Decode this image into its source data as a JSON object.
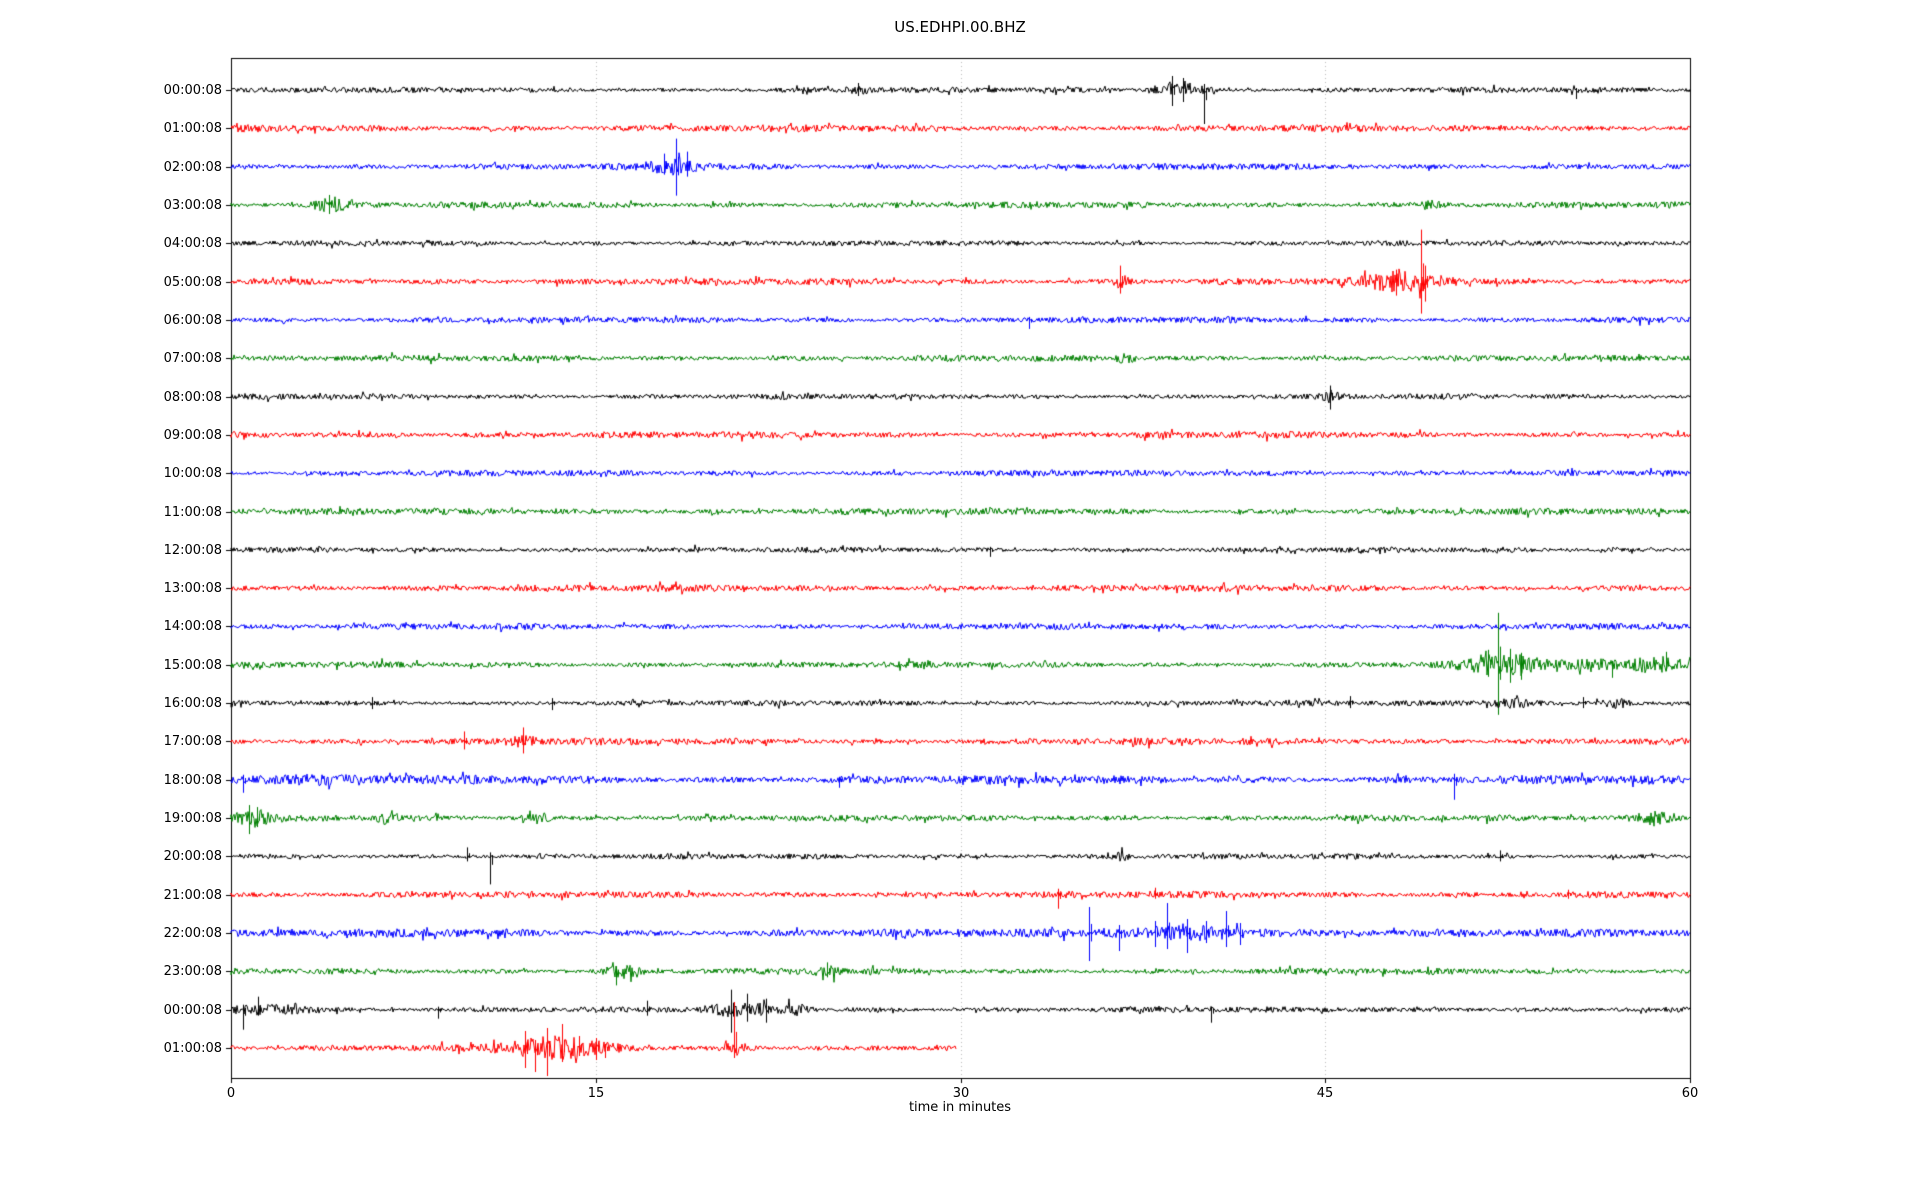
{
  "chart_data": {
    "type": "line",
    "subtype": "helicorder-dayplot",
    "title": "US.EDHPI.00.BHZ",
    "xlabel": "time in minutes",
    "x_range": [
      0,
      60
    ],
    "x_ticks": [
      0,
      15,
      30,
      45,
      60
    ],
    "grid": {
      "vertical_minutes": [
        15,
        30,
        45
      ],
      "horizontal": false,
      "style": "dotted-gray"
    },
    "trace_colors_cycle": [
      "#000000",
      "#ff0000",
      "#0000ff",
      "#008000"
    ],
    "rows": [
      {
        "label": "00:00:08",
        "color": "#000000",
        "end_minute": 60,
        "noise_amp": 2.7,
        "seed": 11,
        "events": [
          {
            "t": 25.8,
            "dur": 0.5,
            "amp": 4
          },
          {
            "t": 38.9,
            "dur": 1.3,
            "amp": 8
          }
        ],
        "spikes": [
          {
            "t": 25.8,
            "up": 7,
            "down": 6
          },
          {
            "t": 38.7,
            "up": 14,
            "down": 16
          },
          {
            "t": 39.15,
            "up": 12,
            "down": 12
          },
          {
            "t": 40.0,
            "up": 6,
            "down": 34
          },
          {
            "t": 55.3,
            "up": 2,
            "down": 9
          }
        ]
      },
      {
        "label": "01:00:08",
        "color": "#ff0000",
        "end_minute": 60,
        "noise_amp": 3.4,
        "seed": 22,
        "events": [],
        "spikes": []
      },
      {
        "label": "02:00:08",
        "color": "#0000ff",
        "end_minute": 60,
        "noise_amp": 3.1,
        "seed": 33,
        "events": [
          {
            "t": 18.3,
            "dur": 1.6,
            "amp": 6
          }
        ],
        "spikes": [
          {
            "t": 17.8,
            "up": 13,
            "down": 8
          },
          {
            "t": 18.3,
            "up": 28,
            "down": 29
          },
          {
            "t": 18.75,
            "up": 15,
            "down": 10
          }
        ]
      },
      {
        "label": "03:00:08",
        "color": "#008000",
        "end_minute": 60,
        "noise_amp": 3.0,
        "seed": 44,
        "events": [
          {
            "t": 4.1,
            "dur": 0.9,
            "amp": 6
          },
          {
            "t": 49.3,
            "dur": 0.8,
            "amp": 3
          }
        ],
        "spikes": [
          {
            "t": 4.05,
            "up": 10,
            "down": 9
          }
        ]
      },
      {
        "label": "04:00:08",
        "color": "#000000",
        "end_minute": 60,
        "noise_amp": 2.6,
        "seed": 55,
        "events": [],
        "spikes": []
      },
      {
        "label": "05:00:08",
        "color": "#ff0000",
        "end_minute": 60,
        "noise_amp": 3.3,
        "seed": 66,
        "events": [
          {
            "t": 36.6,
            "dur": 0.5,
            "amp": 5
          },
          {
            "t": 48.3,
            "dur": 2.4,
            "amp": 8
          }
        ],
        "spikes": [
          {
            "t": 36.55,
            "up": 16,
            "down": 12
          },
          {
            "t": 47.9,
            "up": 12,
            "down": 14
          },
          {
            "t": 48.95,
            "up": 52,
            "down": 32
          },
          {
            "t": 49.1,
            "up": 16,
            "down": 20
          }
        ]
      },
      {
        "label": "06:00:08",
        "color": "#0000ff",
        "end_minute": 60,
        "noise_amp": 3.0,
        "seed": 77,
        "events": [],
        "spikes": [
          {
            "t": 32.8,
            "up": 3,
            "down": 9
          }
        ]
      },
      {
        "label": "07:00:08",
        "color": "#008000",
        "end_minute": 60,
        "noise_amp": 3.0,
        "seed": 88,
        "events": [
          {
            "t": 36.8,
            "dur": 0.5,
            "amp": 4
          }
        ],
        "spikes": []
      },
      {
        "label": "08:00:08",
        "color": "#000000",
        "end_minute": 60,
        "noise_amp": 2.7,
        "seed": 99,
        "events": [
          {
            "t": 45.2,
            "dur": 0.5,
            "amp": 4
          }
        ],
        "spikes": [
          {
            "t": 45.2,
            "up": 11,
            "down": 13
          }
        ]
      },
      {
        "label": "09:00:08",
        "color": "#ff0000",
        "end_minute": 60,
        "noise_amp": 3.3,
        "seed": 110,
        "events": [],
        "spikes": []
      },
      {
        "label": "10:00:08",
        "color": "#0000ff",
        "end_minute": 60,
        "noise_amp": 3.0,
        "seed": 121,
        "events": [],
        "spikes": []
      },
      {
        "label": "11:00:08",
        "color": "#008000",
        "end_minute": 60,
        "noise_amp": 3.2,
        "seed": 132,
        "events": [],
        "spikes": []
      },
      {
        "label": "12:00:08",
        "color": "#000000",
        "end_minute": 60,
        "noise_amp": 2.7,
        "seed": 143,
        "events": [],
        "spikes": [
          {
            "t": 31.2,
            "up": 3,
            "down": 7
          }
        ]
      },
      {
        "label": "13:00:08",
        "color": "#ff0000",
        "end_minute": 60,
        "noise_amp": 3.3,
        "seed": 154,
        "events": [],
        "spikes": []
      },
      {
        "label": "14:00:08",
        "color": "#0000ff",
        "end_minute": 60,
        "noise_amp": 3.0,
        "seed": 165,
        "events": [],
        "spikes": []
      },
      {
        "label": "15:00:08",
        "color": "#008000",
        "end_minute": 60,
        "noise_amp": 3.0,
        "seed": 176,
        "events": [
          {
            "t": 52.4,
            "dur": 2.2,
            "amp": 10
          },
          {
            "t": 55.9,
            "dur": 1.4,
            "amp": 4
          },
          {
            "t": 58.6,
            "dur": 1.8,
            "amp": 7
          }
        ],
        "spikes": [
          {
            "t": 51.7,
            "up": 15,
            "down": 12
          },
          {
            "t": 52.1,
            "up": 52,
            "down": 50
          },
          {
            "t": 52.6,
            "up": 16,
            "down": 18
          },
          {
            "t": 53.05,
            "up": 12,
            "down": 15
          },
          {
            "t": 56.8,
            "up": 4,
            "down": 13
          },
          {
            "t": 59.0,
            "up": 13,
            "down": 6
          }
        ]
      },
      {
        "label": "16:00:08",
        "color": "#000000",
        "end_minute": 60,
        "noise_amp": 2.7,
        "seed": 187,
        "events": [
          {
            "t": 52.5,
            "dur": 1.5,
            "amp": 4
          },
          {
            "t": 57.0,
            "dur": 0.9,
            "amp": 4
          }
        ],
        "spikes": [
          {
            "t": 5.8,
            "up": 6,
            "down": 6
          },
          {
            "t": 13.2,
            "up": 5,
            "down": 7
          },
          {
            "t": 46.0,
            "up": 7,
            "down": 5
          },
          {
            "t": 55.6,
            "up": 6,
            "down": 5
          }
        ]
      },
      {
        "label": "17:00:08",
        "color": "#ff0000",
        "end_minute": 60,
        "noise_amp": 3.3,
        "seed": 198,
        "events": [
          {
            "t": 12.0,
            "dur": 0.8,
            "amp": 4
          }
        ],
        "spikes": [
          {
            "t": 9.6,
            "up": 10,
            "down": 8
          },
          {
            "t": 12.0,
            "up": 14,
            "down": 12
          }
        ]
      },
      {
        "label": "18:00:08",
        "color": "#0000ff",
        "end_minute": 60,
        "noise_amp": 4.2,
        "seed": 209,
        "events": [
          {
            "t": 2.5,
            "dur": 5.0,
            "amp": 2
          }
        ],
        "spikes": [
          {
            "t": 0.5,
            "up": 5,
            "down": 13
          },
          {
            "t": 25.0,
            "up": 3,
            "down": 8
          },
          {
            "t": 50.3,
            "up": 6,
            "down": 20
          }
        ]
      },
      {
        "label": "19:00:08",
        "color": "#008000",
        "end_minute": 60,
        "noise_amp": 3.0,
        "seed": 220,
        "events": [
          {
            "t": 0.9,
            "dur": 1.0,
            "amp": 8
          },
          {
            "t": 6.5,
            "dur": 0.6,
            "amp": 5
          },
          {
            "t": 12.45,
            "dur": 0.8,
            "amp": 6
          },
          {
            "t": 58.5,
            "dur": 1.1,
            "amp": 6
          }
        ],
        "spikes": [
          {
            "t": 0.75,
            "up": 13,
            "down": 16
          },
          {
            "t": 1.05,
            "up": 11,
            "down": 9
          }
        ]
      },
      {
        "label": "20:00:08",
        "color": "#000000",
        "end_minute": 60,
        "noise_amp": 2.7,
        "seed": 231,
        "events": [
          {
            "t": 36.6,
            "dur": 0.5,
            "amp": 3
          }
        ],
        "spikes": [
          {
            "t": 9.7,
            "up": 9,
            "down": 5
          },
          {
            "t": 10.65,
            "up": 4,
            "down": 28
          },
          {
            "t": 52.2,
            "up": 6,
            "down": 5
          }
        ]
      },
      {
        "label": "21:00:08",
        "color": "#ff0000",
        "end_minute": 60,
        "noise_amp": 3.3,
        "seed": 242,
        "events": [],
        "spikes": [
          {
            "t": 34.0,
            "up": 6,
            "down": 14
          },
          {
            "t": 38.0,
            "up": 7,
            "down": 4
          },
          {
            "t": 55.0,
            "up": 5,
            "down": 4
          }
        ]
      },
      {
        "label": "22:00:08",
        "color": "#0000ff",
        "end_minute": 60,
        "noise_amp": 4.0,
        "seed": 253,
        "events": [
          {
            "t": 39.7,
            "dur": 4.5,
            "amp": 5
          }
        ],
        "spikes": [
          {
            "t": 35.3,
            "up": 26,
            "down": 28
          },
          {
            "t": 36.5,
            "up": 8,
            "down": 18
          },
          {
            "t": 38.0,
            "up": 12,
            "down": 14
          },
          {
            "t": 38.5,
            "up": 30,
            "down": 16
          },
          {
            "t": 39.3,
            "up": 14,
            "down": 20
          },
          {
            "t": 40.1,
            "up": 12,
            "down": 10
          },
          {
            "t": 40.9,
            "up": 22,
            "down": 14
          },
          {
            "t": 41.5,
            "up": 10,
            "down": 12
          }
        ]
      },
      {
        "label": "23:00:08",
        "color": "#008000",
        "end_minute": 60,
        "noise_amp": 3.0,
        "seed": 264,
        "events": [
          {
            "t": 16.1,
            "dur": 0.9,
            "amp": 5
          },
          {
            "t": 24.5,
            "dur": 0.6,
            "amp": 5
          }
        ],
        "spikes": [
          {
            "t": 15.85,
            "up": 5,
            "down": 14
          },
          {
            "t": 24.5,
            "up": 9,
            "down": 6
          }
        ]
      },
      {
        "label": "00:00:08",
        "color": "#000000",
        "end_minute": 60,
        "noise_amp": 2.8,
        "seed": 275,
        "events": [
          {
            "t": 1.6,
            "dur": 2.5,
            "amp": 4
          },
          {
            "t": 20.9,
            "dur": 1.6,
            "amp": 6
          },
          {
            "t": 23.3,
            "dur": 0.8,
            "amp": 5
          }
        ],
        "spikes": [
          {
            "t": 0.5,
            "up": 5,
            "down": 20
          },
          {
            "t": 1.1,
            "up": 13,
            "down": 6
          },
          {
            "t": 8.5,
            "up": 3,
            "down": 9
          },
          {
            "t": 17.1,
            "up": 9,
            "down": 6
          },
          {
            "t": 20.55,
            "up": 20,
            "down": 23
          },
          {
            "t": 21.2,
            "up": 16,
            "down": 12
          },
          {
            "t": 22.0,
            "up": 11,
            "down": 13
          },
          {
            "t": 40.3,
            "up": 3,
            "down": 13
          }
        ]
      },
      {
        "label": "01:00:08",
        "color": "#ff0000",
        "end_minute": 29.8,
        "noise_amp": 3.3,
        "seed": 286,
        "events": [
          {
            "t": 13.3,
            "dur": 2.8,
            "amp": 9
          },
          {
            "t": 20.8,
            "dur": 0.7,
            "amp": 5
          }
        ],
        "spikes": [
          {
            "t": 12.1,
            "up": 17,
            "down": 20
          },
          {
            "t": 12.5,
            "up": 8,
            "down": 24
          },
          {
            "t": 13.0,
            "up": 20,
            "down": 28
          },
          {
            "t": 13.6,
            "up": 24,
            "down": 14
          },
          {
            "t": 14.3,
            "up": 12,
            "down": 8
          },
          {
            "t": 15.0,
            "up": 10,
            "down": 12
          },
          {
            "t": 15.4,
            "up": 4,
            "down": 10
          },
          {
            "t": 20.7,
            "up": 46,
            "down": 10
          }
        ]
      }
    ]
  }
}
